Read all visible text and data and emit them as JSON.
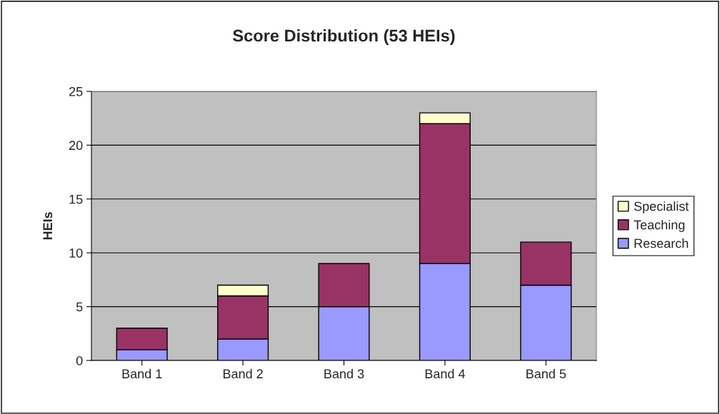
{
  "chart_data": {
    "type": "bar",
    "title": "Score Distribution (53 HEIs)",
    "ylabel": "HEIs",
    "categories": [
      "Band 1",
      "Band 2",
      "Band 3",
      "Band 4",
      "Band 5"
    ],
    "stacked": true,
    "series": [
      {
        "name": "Research",
        "color": "#9999ff",
        "values": [
          1,
          2,
          5,
          9,
          7
        ]
      },
      {
        "name": "Teaching",
        "color": "#993366",
        "values": [
          2,
          4,
          4,
          13,
          4
        ]
      },
      {
        "name": "Specialist",
        "color": "#ffffcc",
        "values": [
          null,
          1,
          null,
          1,
          null
        ]
      }
    ],
    "ylim": [
      0,
      25
    ],
    "yticks": [
      0,
      5,
      10,
      15,
      20,
      25
    ],
    "grid": "y",
    "legend": "right"
  }
}
